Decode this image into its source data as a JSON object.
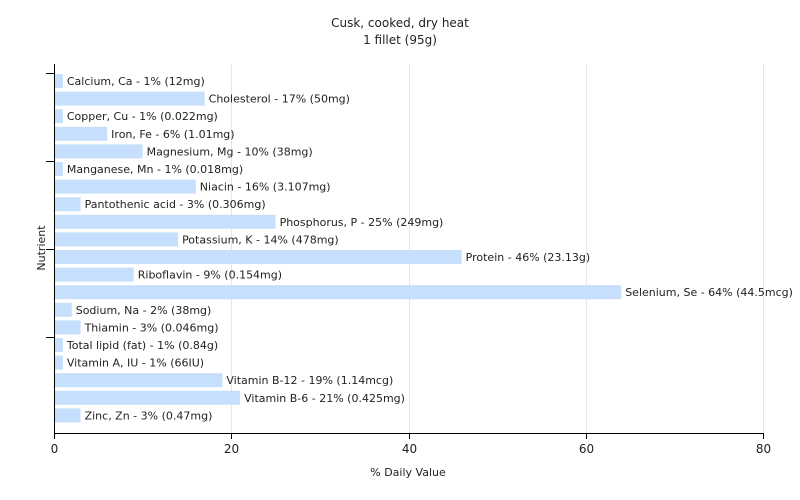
{
  "chart_data": {
    "type": "bar",
    "orientation": "horizontal",
    "title": "Cusk, cooked, dry heat",
    "subtitle": "1 fillet (95g)",
    "xlabel": "% Daily Value",
    "ylabel": "Nutrient",
    "xlim": [
      0,
      80
    ],
    "xticks": [
      0,
      20,
      40,
      60,
      80
    ],
    "grid": true,
    "bar_color": "#c6dffc",
    "categories": [
      "Calcium, Ca",
      "Cholesterol",
      "Copper, Cu",
      "Iron, Fe",
      "Magnesium, Mg",
      "Manganese, Mn",
      "Niacin",
      "Pantothenic acid",
      "Phosphorus, P",
      "Potassium, K",
      "Protein",
      "Riboflavin",
      "Selenium, Se",
      "Sodium, Na",
      "Thiamin",
      "Total lipid (fat)",
      "Vitamin A, IU",
      "Vitamin B-12",
      "Vitamin B-6",
      "Zinc, Zn"
    ],
    "values": [
      1,
      17,
      1,
      6,
      10,
      1,
      16,
      3,
      25,
      14,
      46,
      9,
      64,
      2,
      3,
      1,
      1,
      19,
      21,
      3
    ],
    "labels": [
      "Calcium, Ca - 1% (12mg)",
      "Cholesterol - 17% (50mg)",
      "Copper, Cu - 1% (0.022mg)",
      "Iron, Fe - 6% (1.01mg)",
      "Magnesium, Mg - 10% (38mg)",
      "Manganese, Mn - 1% (0.018mg)",
      "Niacin - 16% (3.107mg)",
      "Pantothenic acid - 3% (0.306mg)",
      "Phosphorus, P - 25% (249mg)",
      "Potassium, K - 14% (478mg)",
      "Protein - 46% (23.13g)",
      "Riboflavin - 9% (0.154mg)",
      "Selenium, Se - 64% (44.5mcg)",
      "Sodium, Na - 2% (38mg)",
      "Thiamin - 3% (0.046mg)",
      "Total lipid (fat) - 1% (0.84g)",
      "Vitamin A, IU - 1% (66IU)",
      "Vitamin B-12 - 19% (1.14mcg)",
      "Vitamin B-6 - 21% (0.425mg)",
      "Zinc, Zn - 3% (0.47mg)"
    ]
  }
}
